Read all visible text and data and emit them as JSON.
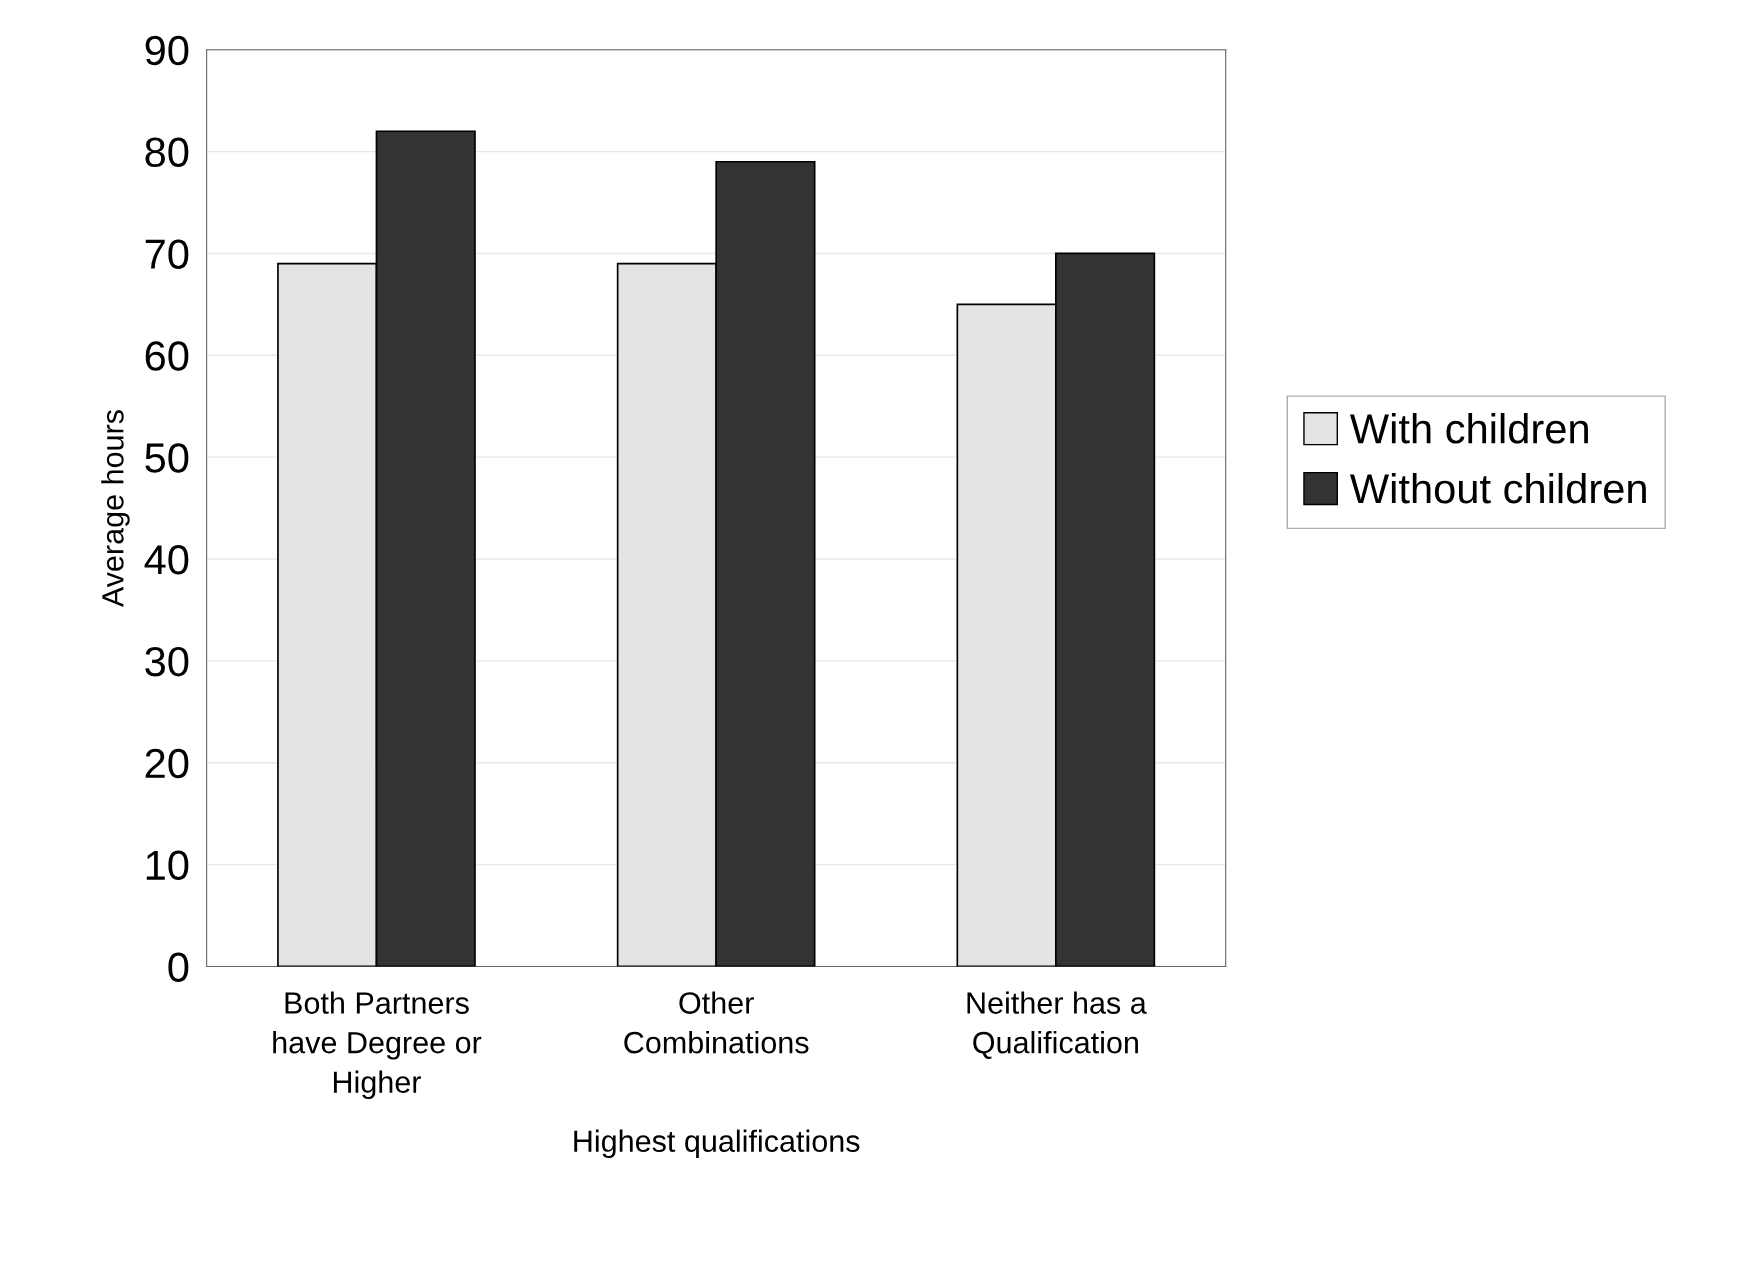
{
  "chart_data": {
    "type": "bar",
    "xlabel": "Highest qualifications",
    "ylabel": "Average hours",
    "categories": [
      "Both Partners\nhave Degree or\nHigher",
      "Other\nCombinations",
      "Neither has a\nQualification"
    ],
    "series": [
      {
        "name": "With children",
        "color": "#e4e4e4",
        "values": [
          69,
          69,
          65
        ]
      },
      {
        "name": "Without children",
        "color": "#333333",
        "values": [
          82,
          79,
          70
        ]
      }
    ],
    "ylim": [
      0,
      90
    ],
    "yticks": [
      0,
      10,
      20,
      30,
      40,
      50,
      60,
      70,
      80,
      90
    ],
    "grid": "y",
    "legend": "right"
  }
}
